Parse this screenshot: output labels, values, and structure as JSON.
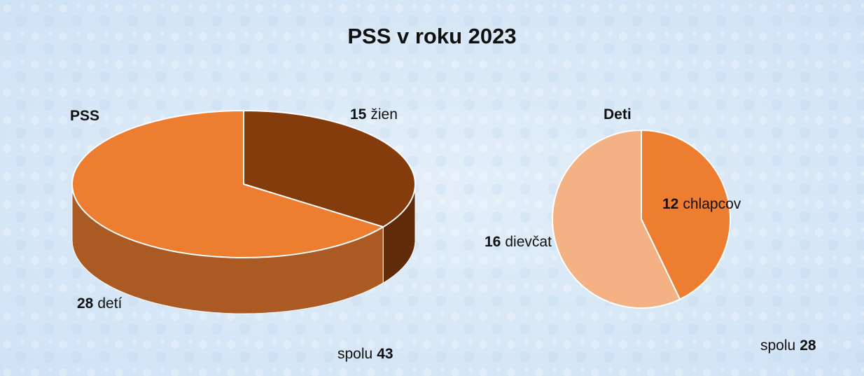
{
  "title": "PSS v roku 2023",
  "chart_data": [
    {
      "type": "pie",
      "three_d": true,
      "title": "PSS",
      "categories": [
        "žien",
        "detí"
      ],
      "values": [
        15,
        28
      ],
      "colors": [
        "#843c0c",
        "#ed7d31"
      ],
      "total_label": "spolu",
      "total": 43
    },
    {
      "type": "pie",
      "three_d": false,
      "title": "Deti",
      "categories": [
        "chlapcov",
        "dievčat"
      ],
      "values": [
        12,
        16
      ],
      "colors": [
        "#ed7d31",
        "#f4b183"
      ],
      "total_label": "spolu",
      "total": 28
    }
  ]
}
